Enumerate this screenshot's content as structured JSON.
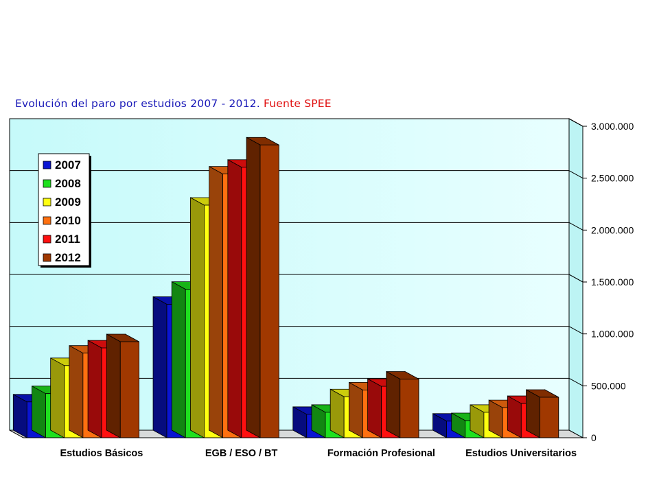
{
  "chart_data": {
    "type": "bar",
    "title": "Evolución del paro por estudios 2007 - 2012.",
    "title_source": "Fuente SPEE",
    "categories": [
      "Estudios Básicos",
      "EGB / ESO / BT",
      "Formación Profesional",
      "Estudios Universitarios"
    ],
    "series": [
      {
        "name": "2007",
        "color": "#0a14d2",
        "values": [
          345000,
          1285000,
          225000,
          160000
        ]
      },
      {
        "name": "2008",
        "color": "#1ee01e",
        "values": [
          425000,
          1430000,
          245000,
          165000
        ]
      },
      {
        "name": "2009",
        "color": "#ffff10",
        "values": [
          695000,
          2240000,
          395000,
          245000
        ]
      },
      {
        "name": "2010",
        "color": "#ff7010",
        "values": [
          815000,
          2540000,
          460000,
          290000
        ]
      },
      {
        "name": "2011",
        "color": "#ff1010",
        "values": [
          865000,
          2605000,
          495000,
          330000
        ]
      },
      {
        "name": "2012",
        "color": "#a03800",
        "values": [
          925000,
          2820000,
          565000,
          390000
        ]
      }
    ],
    "ylim": [
      0,
      3000000
    ],
    "y_ticks": [
      0,
      500000,
      1000000,
      1500000,
      2000000,
      2500000,
      3000000
    ],
    "y_tick_labels": [
      "0",
      "500.000",
      "1.000.000",
      "1.500.000",
      "2.000.000",
      "2.500.000",
      "3.000.000"
    ],
    "xlabel": "",
    "ylabel": "",
    "grid": true,
    "legend_position": "top-left",
    "three_d": true
  }
}
